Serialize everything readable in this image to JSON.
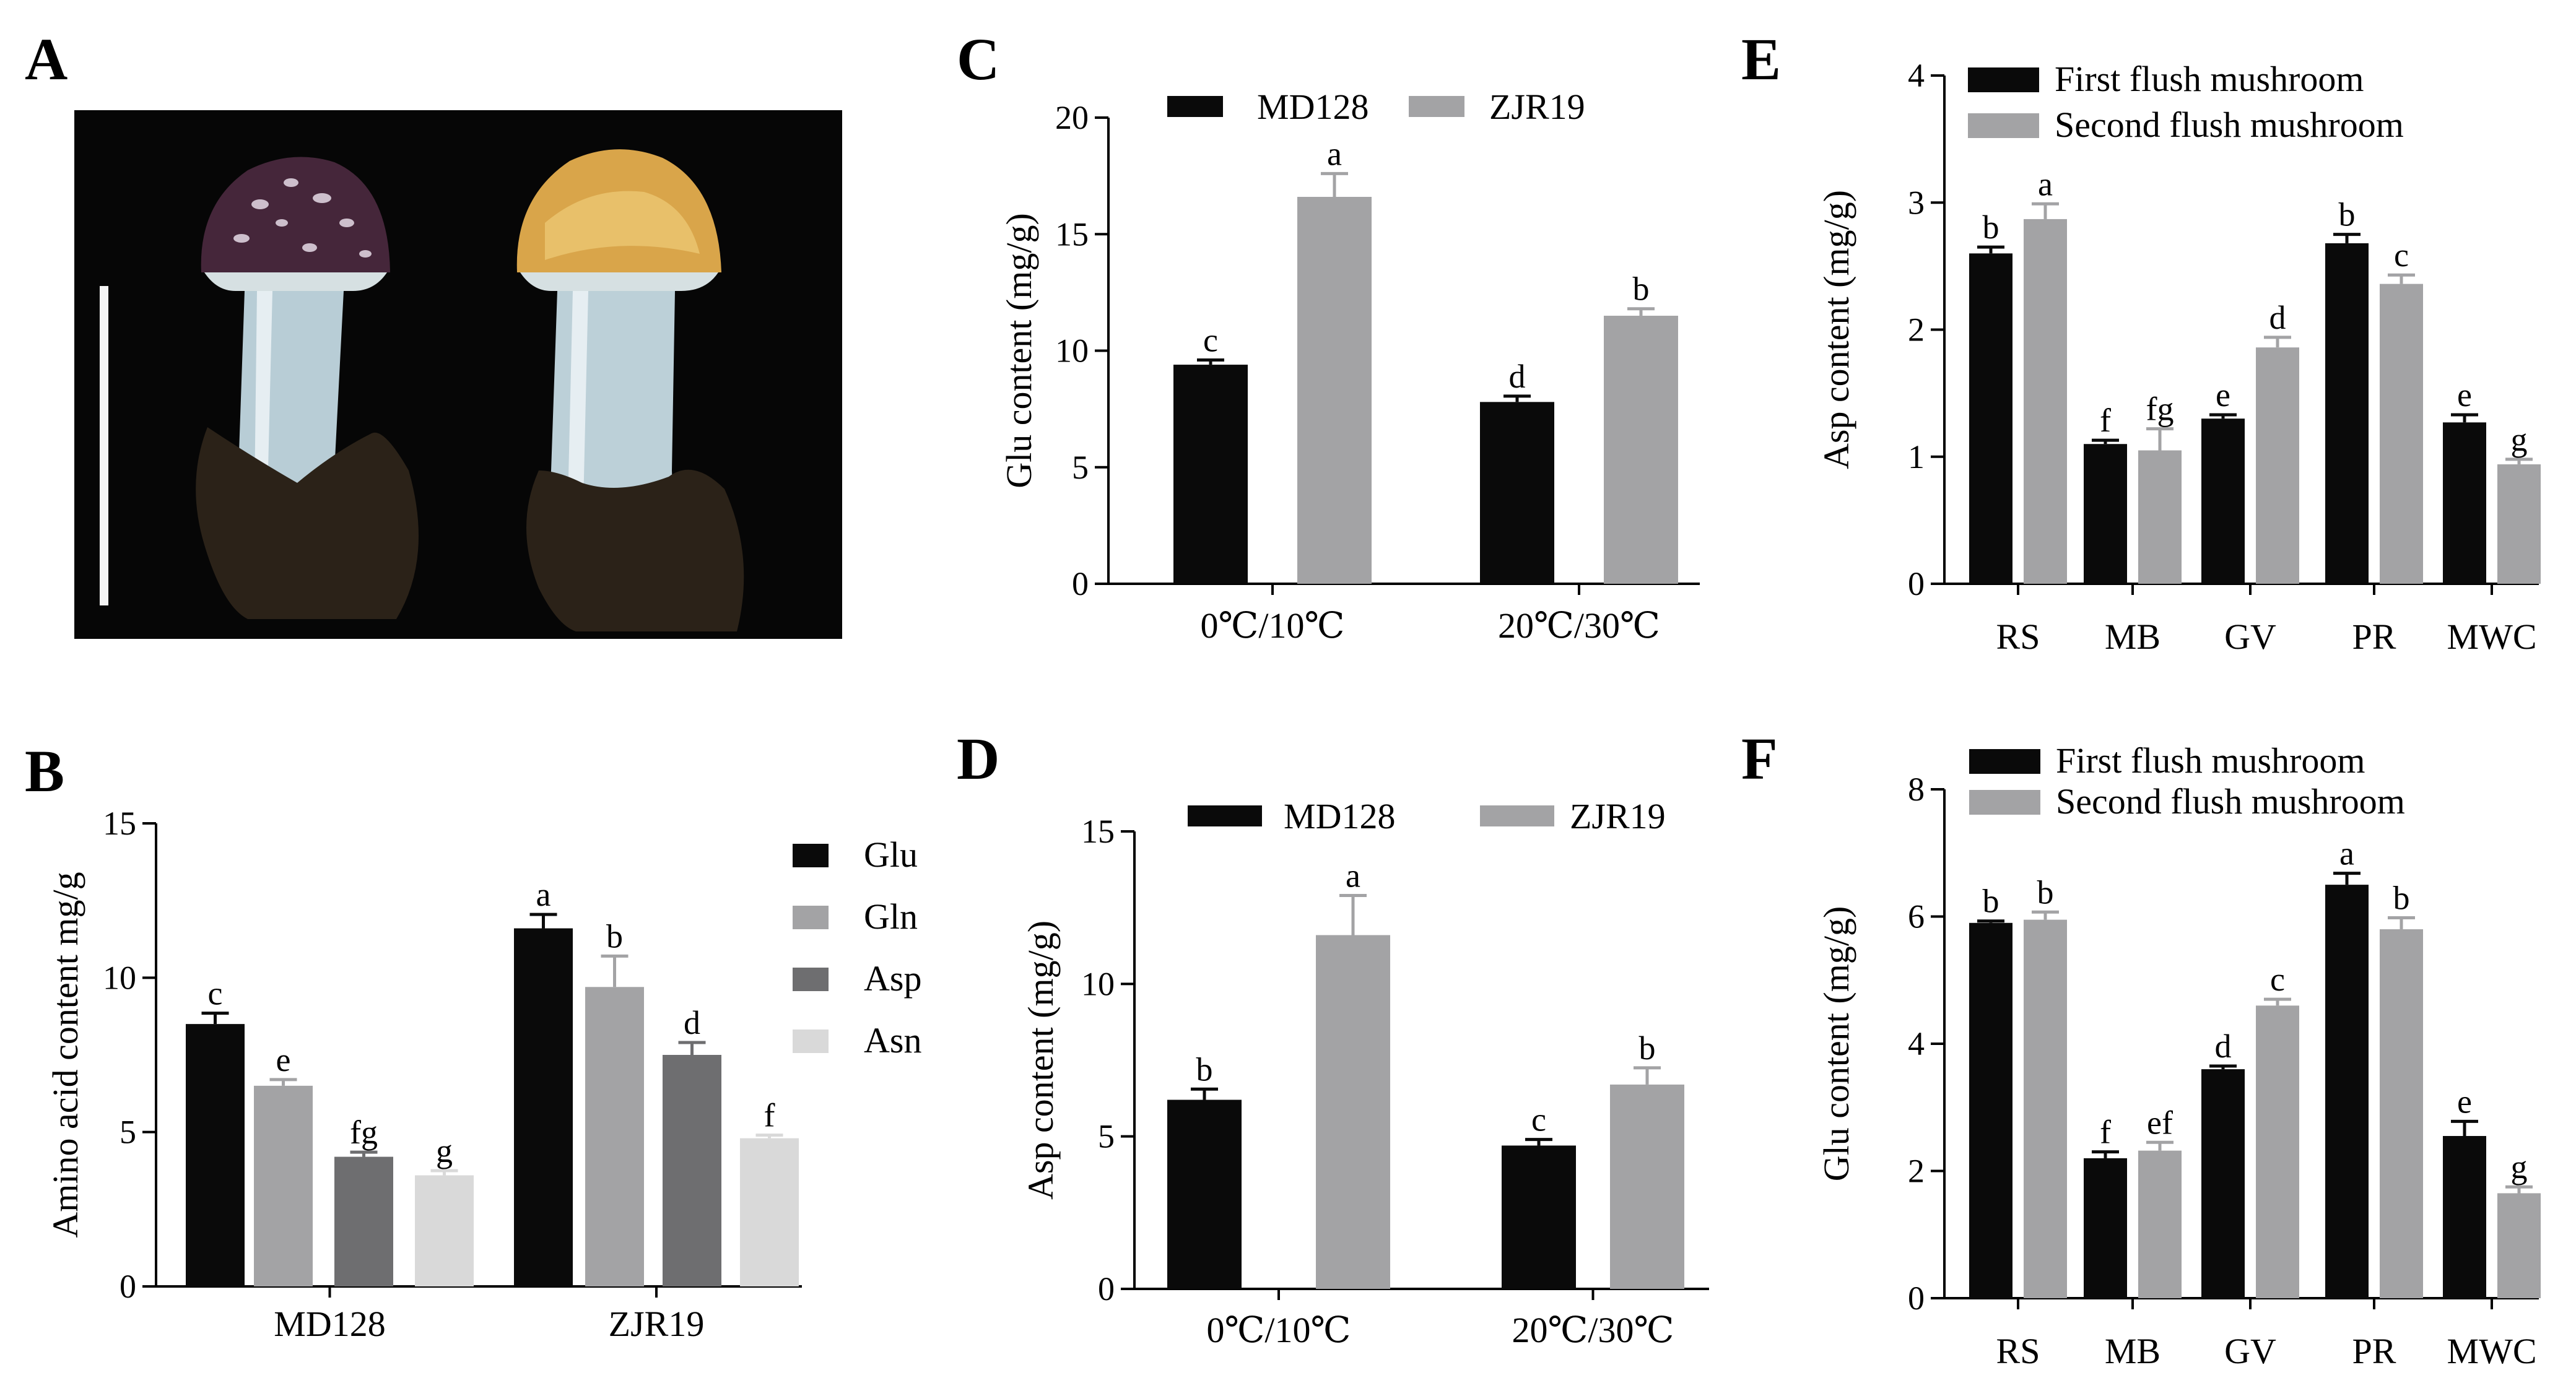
{
  "colors": {
    "black": "#0a0a0a",
    "gray": "#a3a3a5",
    "dark_gray": "#6e6e70",
    "light_gray": "#d9d9d9"
  },
  "photo": {
    "label": "A"
  },
  "chart_data": [
    {
      "id": "B",
      "label": "B",
      "type": "bar",
      "categories": [
        "MD128",
        "ZJR19"
      ],
      "ylabel": "Amino acid content mg/g",
      "ylim": [
        0,
        15
      ],
      "yticks": [
        0,
        5,
        10,
        15
      ],
      "legend_position": "right",
      "series": [
        {
          "name": "Glu",
          "color": "black",
          "values": [
            8.5,
            11.6
          ],
          "errors": [
            0.35,
            0.45
          ],
          "letters": [
            "c",
            "a"
          ]
        },
        {
          "name": "Gln",
          "color": "gray",
          "values": [
            6.5,
            9.7
          ],
          "errors": [
            0.2,
            1.0
          ],
          "letters": [
            "e",
            "b"
          ]
        },
        {
          "name": "Asp",
          "color": "dark_gray",
          "values": [
            4.2,
            7.5
          ],
          "errors": [
            0.15,
            0.4
          ],
          "letters": [
            "fg",
            "d"
          ]
        },
        {
          "name": "Asn",
          "color": "light_gray",
          "values": [
            3.6,
            4.8
          ],
          "errors": [
            0.15,
            0.1
          ],
          "letters": [
            "g",
            "f"
          ]
        }
      ]
    },
    {
      "id": "C",
      "label": "C",
      "type": "bar",
      "categories": [
        "0℃/10℃",
        "20℃/30℃"
      ],
      "ylabel": "Glu content (mg/g)",
      "ylim": [
        0,
        20
      ],
      "yticks": [
        0,
        5,
        10,
        15,
        20
      ],
      "legend_position": "top",
      "series": [
        {
          "name": "MD128",
          "color": "black",
          "values": [
            9.4,
            7.8
          ],
          "errors": [
            0.2,
            0.25
          ],
          "letters": [
            "c",
            "d"
          ]
        },
        {
          "name": "ZJR19",
          "color": "gray",
          "values": [
            16.6,
            11.5
          ],
          "errors": [
            1.0,
            0.3
          ],
          "letters": [
            "a",
            "b"
          ]
        }
      ]
    },
    {
      "id": "D",
      "label": "D",
      "type": "bar",
      "categories": [
        "0℃/10℃",
        "20℃/30℃"
      ],
      "ylabel": "Asp content (mg/g)",
      "ylim": [
        0,
        15
      ],
      "yticks": [
        0,
        5,
        10,
        15
      ],
      "legend_position": "top",
      "series": [
        {
          "name": "MD128",
          "color": "black",
          "values": [
            6.2,
            4.7
          ],
          "errors": [
            0.35,
            0.2
          ],
          "letters": [
            "b",
            "c"
          ]
        },
        {
          "name": "ZJR19",
          "color": "gray",
          "values": [
            11.6,
            6.7
          ],
          "errors": [
            1.3,
            0.55
          ],
          "letters": [
            "a",
            "b"
          ]
        }
      ]
    },
    {
      "id": "E",
      "label": "E",
      "type": "bar",
      "categories": [
        "RS",
        "MB",
        "GV",
        "PR",
        "MWC"
      ],
      "ylabel": "Asp content (mg/g)",
      "ylim": [
        0,
        4
      ],
      "yticks": [
        0,
        1,
        2,
        3,
        4
      ],
      "legend_position": "top",
      "series": [
        {
          "name": "First  flush mushroom",
          "color": "black",
          "values": [
            2.6,
            1.1,
            1.3,
            2.68,
            1.27
          ],
          "errors": [
            0.05,
            0.03,
            0.03,
            0.07,
            0.06
          ],
          "letters": [
            "b",
            "f",
            "e",
            "b",
            "e"
          ]
        },
        {
          "name": "Second flush mushroom",
          "color": "gray",
          "values": [
            2.87,
            1.05,
            1.86,
            2.36,
            0.94
          ],
          "errors": [
            0.12,
            0.17,
            0.08,
            0.07,
            0.04
          ],
          "letters": [
            "a",
            "fg",
            "d",
            "c",
            "g"
          ]
        }
      ]
    },
    {
      "id": "F",
      "label": "F",
      "type": "bar",
      "categories": [
        "RS",
        "MB",
        "GV",
        "PR",
        "MWC"
      ],
      "ylabel": "Glu content (mg/g)",
      "ylim": [
        0,
        8
      ],
      "yticks": [
        0,
        2,
        4,
        6,
        8
      ],
      "legend_position": "top",
      "series": [
        {
          "name": "First  flush mushroom",
          "color": "black",
          "values": [
            5.9,
            2.2,
            3.6,
            6.5,
            2.55
          ],
          "errors": [
            0.03,
            0.1,
            0.05,
            0.18,
            0.23
          ],
          "letters": [
            "b",
            "f",
            "d",
            "a",
            "e"
          ]
        },
        {
          "name": "Second flush mushroom",
          "color": "gray",
          "values": [
            5.95,
            2.32,
            4.6,
            5.8,
            1.65
          ],
          "errors": [
            0.12,
            0.13,
            0.1,
            0.18,
            0.1
          ],
          "letters": [
            "b",
            "ef",
            "c",
            "b",
            "g"
          ]
        }
      ]
    }
  ]
}
